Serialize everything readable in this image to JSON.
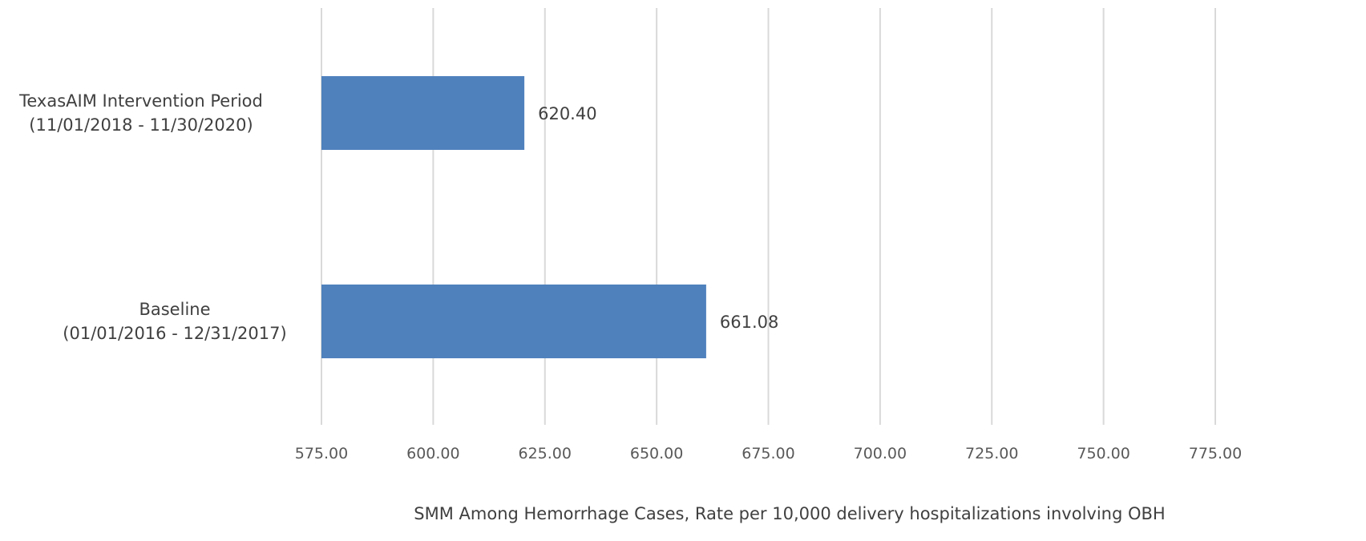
{
  "chart_data": {
    "type": "bar",
    "orientation": "horizontal",
    "categories": [
      [
        "TexasAIM Intervention Period",
        "(11/01/2018 - 11/30/2020)"
      ],
      [
        "Baseline",
        "(01/01/2016 - 12/31/2017)"
      ]
    ],
    "values": [
      620.4,
      661.08
    ],
    "data_labels": [
      "620.40",
      "661.08"
    ],
    "xlabel": "SMM Among Hemorrhage Cases, Rate per 10,000 delivery hospitalizations  involving OBH",
    "xlim": [
      575,
      775
    ],
    "xticks": [
      575,
      600,
      625,
      650,
      675,
      700,
      725,
      750,
      775
    ],
    "xtick_labels": [
      "575.00",
      "600.00",
      "625.00",
      "650.00",
      "675.00",
      "700.00",
      "725.00",
      "750.00",
      "775.00"
    ],
    "grid": true,
    "bar_color": "#4f81bd"
  }
}
